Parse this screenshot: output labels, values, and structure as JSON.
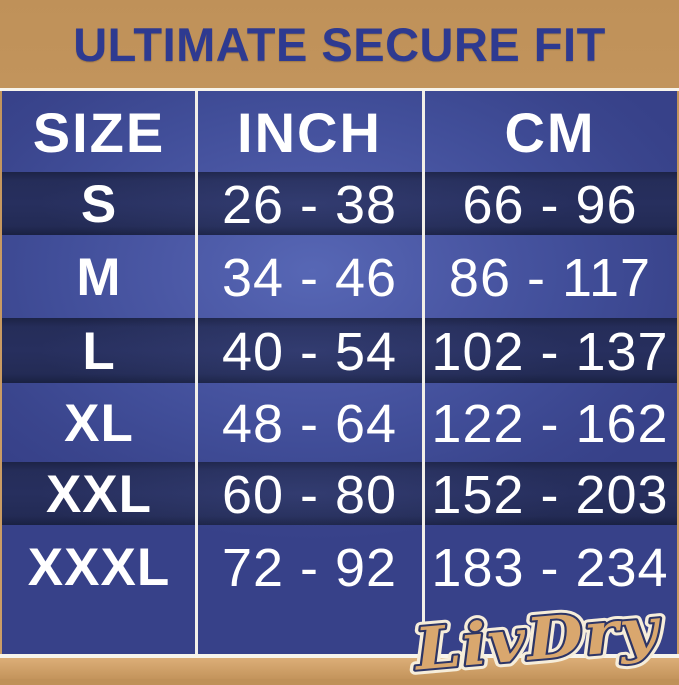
{
  "title": "ULTIMATE SECURE FIT",
  "brand": {
    "name": "LivDry"
  },
  "table": {
    "headers": [
      "SIZE",
      "INCH",
      "CM"
    ],
    "rows": [
      {
        "size": "S",
        "inch": "26 - 38",
        "cm": "66 - 96"
      },
      {
        "size": "M",
        "inch": "34 - 46",
        "cm": "86 - 117"
      },
      {
        "size": "L",
        "inch": "40 - 54",
        "cm": "102 - 137"
      },
      {
        "size": "XL",
        "inch": "48 - 64",
        "cm": "122 - 162"
      },
      {
        "size": "XXL",
        "inch": "60 - 80",
        "cm": "152 - 203"
      },
      {
        "size": "XXXL",
        "inch": "72 - 92",
        "cm": "183 - 234"
      }
    ]
  },
  "colors": {
    "background_tan": "#c89a62",
    "bottom_strip_tan": "#cb9c64",
    "title_navy": "#2e3a90",
    "table_light_blue": "#47549e",
    "table_dark_navy": "#252d59",
    "divider_white": "#f2efe8",
    "text_white": "#ffffff",
    "logo_fill": "#d9a76e",
    "logo_outline": "#2d3566",
    "logo_halo": "#f6edda"
  },
  "chart_data": {
    "type": "table",
    "title": "ULTIMATE SECURE FIT",
    "columns": [
      "SIZE",
      "INCH",
      "CM"
    ],
    "rows": [
      [
        "S",
        "26 - 38",
        "66 - 96"
      ],
      [
        "M",
        "34 - 46",
        "86 - 117"
      ],
      [
        "L",
        "40 - 54",
        "102 - 137"
      ],
      [
        "XL",
        "48 - 64",
        "122 - 162"
      ],
      [
        "XXL",
        "60 - 80",
        "152 - 203"
      ],
      [
        "XXXL",
        "72 - 92",
        "183 - 234"
      ]
    ]
  }
}
